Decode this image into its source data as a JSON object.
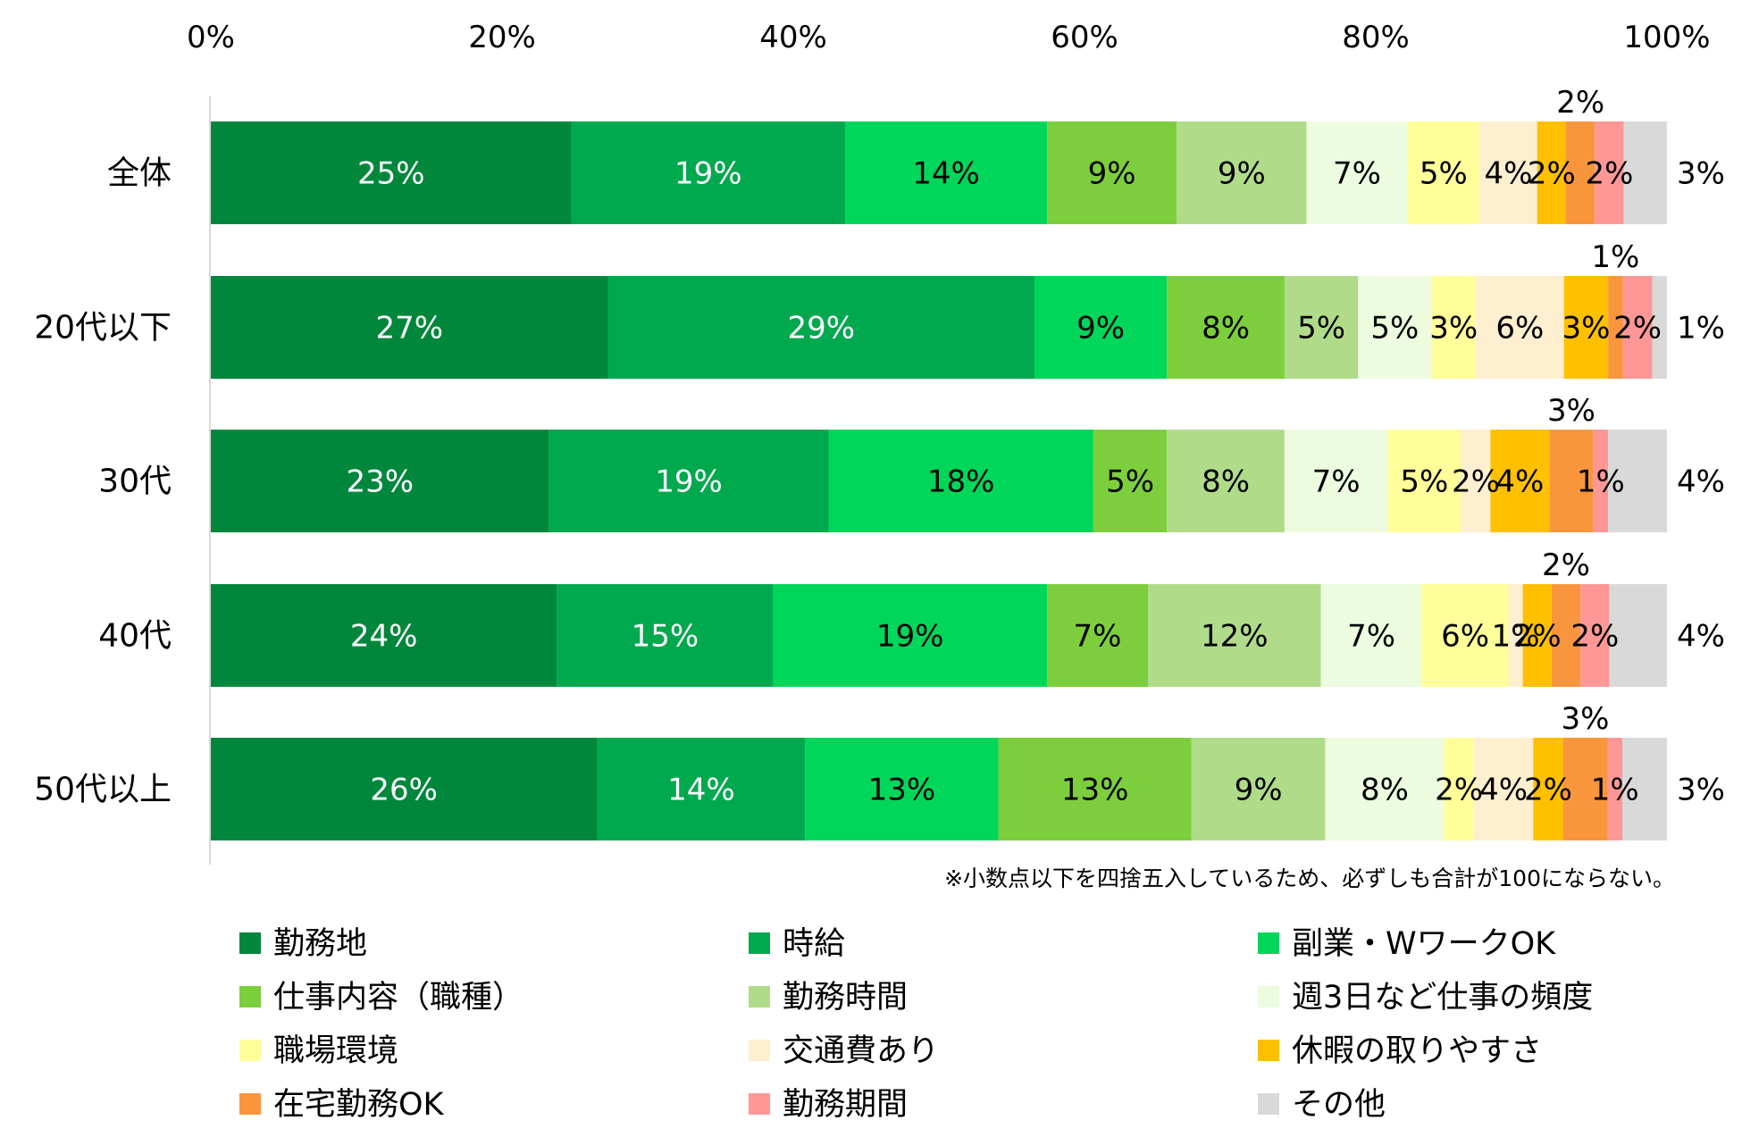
{
  "chart_data": {
    "type": "bar",
    "orientation": "horizontal",
    "stacked": true,
    "normalized": true,
    "title": "",
    "xlabel": "",
    "ylabel": "",
    "xlim": [
      0,
      100
    ],
    "x_ticks": [
      "0%",
      "20%",
      "40%",
      "60%",
      "80%",
      "100%"
    ],
    "categories": [
      "全体",
      "20代以下",
      "30代",
      "40代",
      "50代以上"
    ],
    "series": [
      {
        "name": "勤務地",
        "color": "#00873C",
        "values": [
          25,
          27,
          23,
          24,
          26
        ],
        "labels": [
          "25%",
          "27%",
          "23%",
          "24%",
          "26%"
        ]
      },
      {
        "name": "時給",
        "color": "#00A84E",
        "values": [
          19,
          29,
          19,
          15,
          14
        ],
        "labels": [
          "19%",
          "29%",
          "19%",
          "15%",
          "14%"
        ]
      },
      {
        "name": "副業・WワークOK",
        "color": "#00D65A",
        "values": [
          14,
          9,
          18,
          19,
          13
        ],
        "labels": [
          "14%",
          "9%",
          "18%",
          "19%",
          "13%"
        ]
      },
      {
        "name": "仕事内容（職種）",
        "color": "#7DCE3C",
        "values": [
          9,
          8,
          5,
          7,
          13
        ],
        "labels": [
          "9%",
          "8%",
          "5%",
          "7%",
          "13%"
        ]
      },
      {
        "name": "勤務時間",
        "color": "#B0DC8A",
        "values": [
          9,
          5,
          8,
          12,
          9
        ],
        "labels": [
          "9%",
          "5%",
          "8%",
          "12%",
          "9%"
        ]
      },
      {
        "name": "週3日など仕事の頻度",
        "color": "#EDFCDF",
        "values": [
          7,
          5,
          7,
          7,
          8
        ],
        "labels": [
          "7%",
          "5%",
          "7%",
          "7%",
          "8%"
        ]
      },
      {
        "name": "職場環境",
        "color": "#FFFE9A",
        "values": [
          5,
          3,
          5,
          6,
          2
        ],
        "labels": [
          "5%",
          "3%",
          "5%",
          "6%",
          "2%"
        ]
      },
      {
        "name": "交通費あり",
        "color": "#FDEFD0",
        "values": [
          4,
          6,
          2,
          1,
          4
        ],
        "labels": [
          "4%",
          "6%",
          "2%",
          "1%",
          "4%"
        ]
      },
      {
        "name": "休暇の取りやすさ",
        "color": "#FFC000",
        "values": [
          2,
          3,
          4,
          2,
          2
        ],
        "labels": [
          "2%",
          "3%",
          "4%",
          "2%",
          "2%"
        ]
      },
      {
        "name": "在宅勤務OK",
        "color": "#F9963D",
        "values": [
          2,
          1,
          3,
          2,
          3
        ],
        "labels": [
          "2%",
          "1%",
          "3%",
          "2%",
          "3%"
        ]
      },
      {
        "name": "勤務期間",
        "color": "#FF9797",
        "values": [
          2,
          2,
          1,
          2,
          1
        ],
        "labels": [
          "2%",
          "2%",
          "1%",
          "2%",
          "1%"
        ]
      },
      {
        "name": "その他",
        "color": "#D9D9D9",
        "values": [
          3,
          1,
          4,
          4,
          3
        ],
        "labels": [
          "3%",
          "1%",
          "4%",
          "4%",
          "3%"
        ]
      }
    ],
    "legend_position": "bottom",
    "grid": false,
    "note": "※小数点以下を四捨五入しているため、必ずしも合計が100にならない。"
  }
}
